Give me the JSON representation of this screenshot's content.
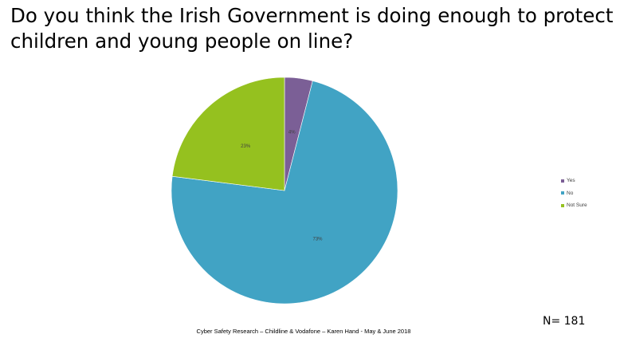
{
  "title": "Do you think the Irish Government is doing enough to protect children and young people on line?",
  "footer": "Cyber Safety Research – Childline & Vodafone – Karen Hand - May & June 2018",
  "sample_size": "N= 181",
  "chart_data": {
    "type": "pie",
    "title": "Do you think the Irish Government is doing enough to protect children and young people on line?",
    "legend_position": "right",
    "slices": [
      {
        "label": "Yes",
        "value": 4,
        "display": "4%",
        "color": "#7b5f96"
      },
      {
        "label": "No",
        "value": 73,
        "display": "73%",
        "color": "#41a3c4"
      },
      {
        "label": "Not Sure",
        "value": 23,
        "display": "23%",
        "color": "#95c11f"
      }
    ]
  }
}
